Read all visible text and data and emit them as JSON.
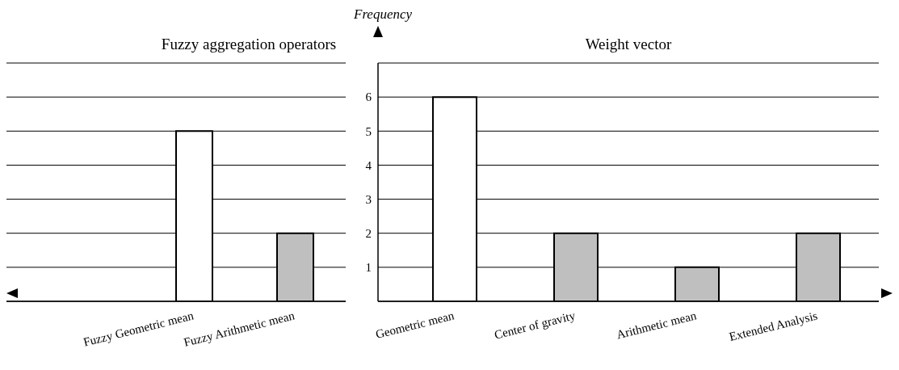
{
  "chart_data": [
    {
      "type": "bar",
      "title": "Fuzzy aggregation operators",
      "categories": [
        "Fuzzy Geometric mean",
        "Fuzzy Arithmetic mean"
      ],
      "values": [
        5,
        2
      ],
      "colors": [
        "#ffffff",
        "#bfbfbf"
      ],
      "ylim": [
        0,
        7
      ],
      "yticks": [
        1,
        2,
        3,
        4,
        5,
        6
      ],
      "grid": "y",
      "tick_labels": "x"
    },
    {
      "type": "bar",
      "title": "Weight vector",
      "ylabel": "Frequency",
      "categories": [
        "Geometric mean",
        "Center of gravity",
        "Arithmetic mean",
        "Extended Analysis"
      ],
      "values": [
        6,
        2,
        1,
        2
      ],
      "colors": [
        "#ffffff",
        "#bfbfbf",
        "#bfbfbf",
        "#bfbfbf"
      ],
      "ylim": [
        0,
        7
      ],
      "yticks": [
        1,
        2,
        3,
        4,
        5,
        6
      ],
      "grid": "y"
    }
  ]
}
